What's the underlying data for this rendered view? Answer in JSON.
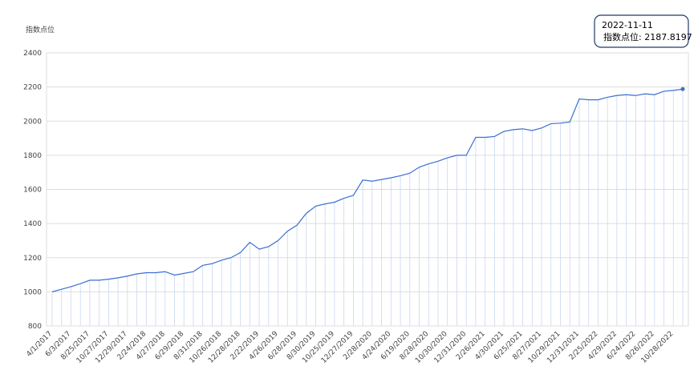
{
  "chart_data": {
    "type": "line",
    "y_label": "指数点位",
    "categories": [
      "4/1/2017",
      null,
      "6/3/2017",
      null,
      "8/25/2017",
      null,
      "10/27/2017",
      null,
      "12/29/2017",
      null,
      "2/24/2018",
      null,
      "4/27/2018",
      null,
      "6/29/2018",
      null,
      "8/31/2018",
      null,
      "10/26/2018",
      null,
      "12/28/2018",
      null,
      "2/22/2019",
      null,
      "4/26/2019",
      null,
      "6/28/2019",
      null,
      "8/30/2019",
      null,
      "10/25/2019",
      null,
      "12/27/2019",
      null,
      "2/28/2020",
      null,
      "4/24/2020",
      null,
      "6/19/2020",
      null,
      "8/28/2020",
      null,
      "10/30/2020",
      null,
      "12/31/2020",
      null,
      "2/26/2021",
      null,
      "4/30/2021",
      null,
      "6/25/2021",
      null,
      "8/27/2021",
      null,
      "10/29/2021",
      null,
      "12/31/2021",
      null,
      "2/25/2022",
      null,
      "4/29/2022",
      null,
      "6/24/2022",
      null,
      "8/26/2022",
      null,
      "10/28/2022",
      null
    ],
    "series": [
      {
        "name": "指数点位",
        "color": "#3b6fd1",
        "values": [
          1000,
          1015,
          1030,
          1048,
          1068,
          1068,
          1074,
          1082,
          1092,
          1105,
          1112,
          1112,
          1118,
          1098,
          1108,
          1118,
          1155,
          1165,
          1185,
          1200,
          1230,
          1290,
          1250,
          1265,
          1300,
          1355,
          1390,
          1460,
          1502,
          1515,
          1525,
          1548,
          1565,
          1655,
          1648,
          1658,
          1668,
          1680,
          1695,
          1730,
          1750,
          1765,
          1785,
          1800,
          1800,
          1905,
          1905,
          1910,
          1940,
          1950,
          1955,
          1945,
          1960,
          1985,
          1988,
          1995,
          2130,
          2125,
          2125,
          2140,
          2150,
          2155,
          2150,
          2160,
          2155,
          2175,
          2180,
          2187.8197
        ]
      }
    ],
    "ylim": [
      800,
      2400
    ],
    "yticks": [
      800,
      1000,
      1200,
      1400,
      1600,
      1800,
      2000,
      2200,
      2400
    ],
    "grid": true,
    "tooltip": {
      "date": "2022-11-11",
      "text": "指数点位: 2187.8197"
    }
  }
}
